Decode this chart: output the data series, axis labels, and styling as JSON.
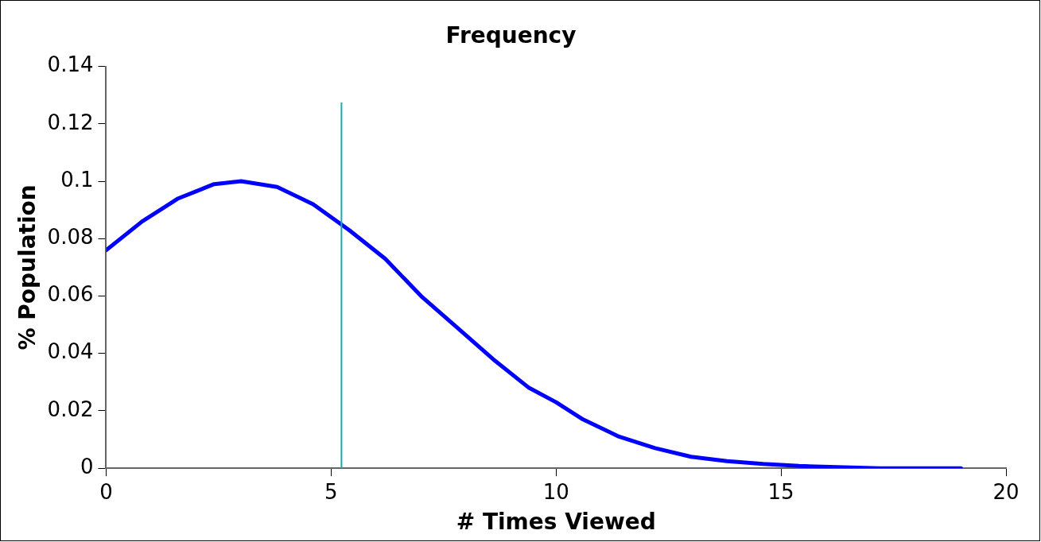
{
  "chart_data": {
    "type": "line",
    "title": "Frequency",
    "xlabel": "# Times Viewed",
    "ylabel": "% Population",
    "x": [
      0,
      0.8,
      1.6,
      2.4,
      3,
      3.8,
      4.6,
      5.4,
      6.2,
      7,
      7.8,
      8.6,
      9.4,
      10,
      10.6,
      11.4,
      12.2,
      13,
      13.8,
      14.6,
      15.4,
      16.4,
      17.2,
      19
    ],
    "series": [
      {
        "color": "#0000ff",
        "values": [
          0.076,
          0.086,
          0.094,
          0.099,
          0.1,
          0.098,
          0.092,
          0.083,
          0.073,
          0.06,
          0.049,
          0.038,
          0.028,
          0.023,
          0.017,
          0.011,
          0.007,
          0.004,
          0.0025,
          0.0015,
          0.0008,
          0.0003,
          0,
          0
        ]
      }
    ],
    "xlim": [
      0,
      20
    ],
    "xticks": [
      0,
      5,
      10,
      15,
      20
    ],
    "ylim": [
      0,
      0.14
    ],
    "yticks": [
      0,
      0.02,
      0.04,
      0.06,
      0.08,
      0.1,
      0.12,
      0.14
    ],
    "ref_lines": [
      {
        "axis": "x",
        "value": 5.23,
        "color": "#1aacac"
      }
    ],
    "grid": false,
    "legend": false,
    "marker": "none",
    "line_style": "solid"
  }
}
